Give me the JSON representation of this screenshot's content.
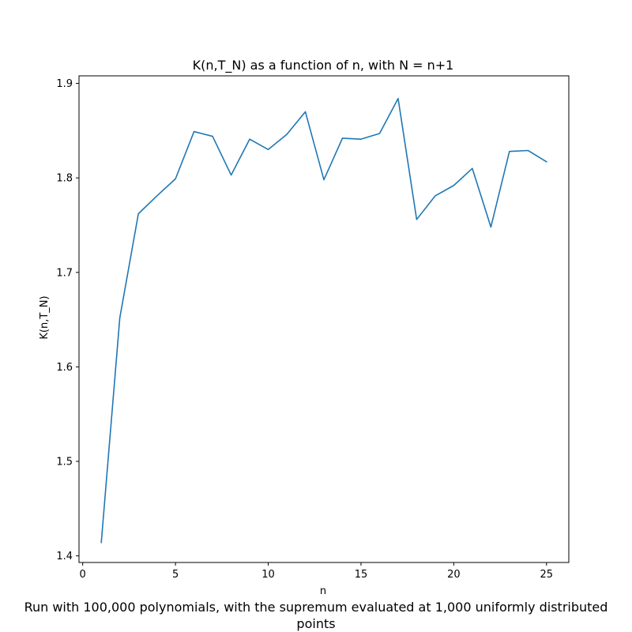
{
  "chart_data": {
    "type": "line",
    "title": "K(n,T_N) as a function of n, with N = n+1",
    "xlabel": "n",
    "ylabel": "K(n,T_N)",
    "caption_lines": [
      "Run with 100,000 polynomials, with the supremum evaluated at 1,000 uniformly distributed",
      "points"
    ],
    "xlim": [
      -0.2,
      26.2
    ],
    "ylim": [
      1.393,
      1.908
    ],
    "x_ticks": [
      0,
      5,
      10,
      15,
      20,
      25
    ],
    "x_tick_labels": [
      "0",
      "5",
      "10",
      "15",
      "20",
      "25"
    ],
    "y_ticks": [
      1.4,
      1.5,
      1.6,
      1.7,
      1.8,
      1.9
    ],
    "y_tick_labels": [
      "1.4",
      "1.5",
      "1.6",
      "1.7",
      "1.8",
      "1.9"
    ],
    "grid": false,
    "series": [
      {
        "color": "#1f77b4",
        "x": [
          1,
          2,
          3,
          4,
          5,
          6,
          7,
          8,
          9,
          10,
          11,
          12,
          13,
          14,
          15,
          16,
          17,
          18,
          19,
          20,
          21,
          22,
          23,
          24,
          25
        ],
        "y": [
          1.414,
          1.652,
          1.762,
          1.781,
          1.799,
          1.849,
          1.844,
          1.803,
          1.841,
          1.83,
          1.846,
          1.87,
          1.798,
          1.842,
          1.841,
          1.847,
          1.884,
          1.756,
          1.781,
          1.792,
          1.81,
          1.748,
          1.828,
          1.829,
          1.817
        ]
      }
    ]
  }
}
